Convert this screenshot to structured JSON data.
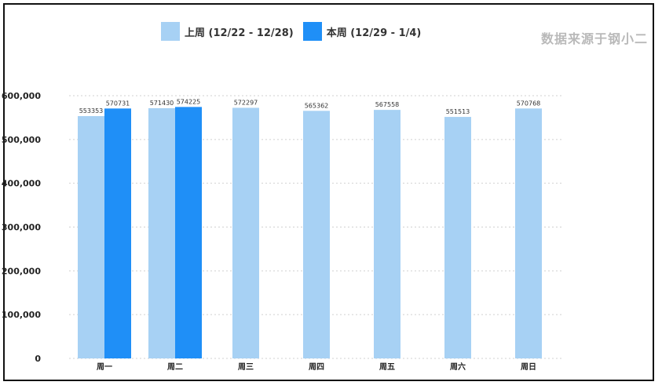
{
  "legend": {
    "series_0": "上周 (12/22 - 12/28)",
    "series_1": "本周 (12/29 - 1/4)"
  },
  "source_text": "数据来源于钢小二",
  "colors": {
    "series_0": "#a7d1f4",
    "series_1": "#1f8ff7",
    "grid": "#d0d0d0",
    "frame": "#111111"
  },
  "chart_data": {
    "type": "bar",
    "categories": [
      "周一",
      "周二",
      "周三",
      "周四",
      "周五",
      "周六",
      "周日"
    ],
    "series": [
      {
        "name": "上周 (12/22 - 12/28)",
        "values": [
          553353,
          571430,
          572297,
          565362,
          567558,
          551513,
          570768
        ]
      },
      {
        "name": "本周 (12/29 - 1/4)",
        "values": [
          570731,
          574225,
          null,
          null,
          null,
          null,
          null
        ]
      }
    ],
    "yticks": [
      "0",
      "100,000",
      "200,000",
      "300,000",
      "400,000",
      "500,000",
      "600,000"
    ],
    "ylim": [
      0,
      600000
    ],
    "grid": true,
    "legend_position": "top"
  }
}
